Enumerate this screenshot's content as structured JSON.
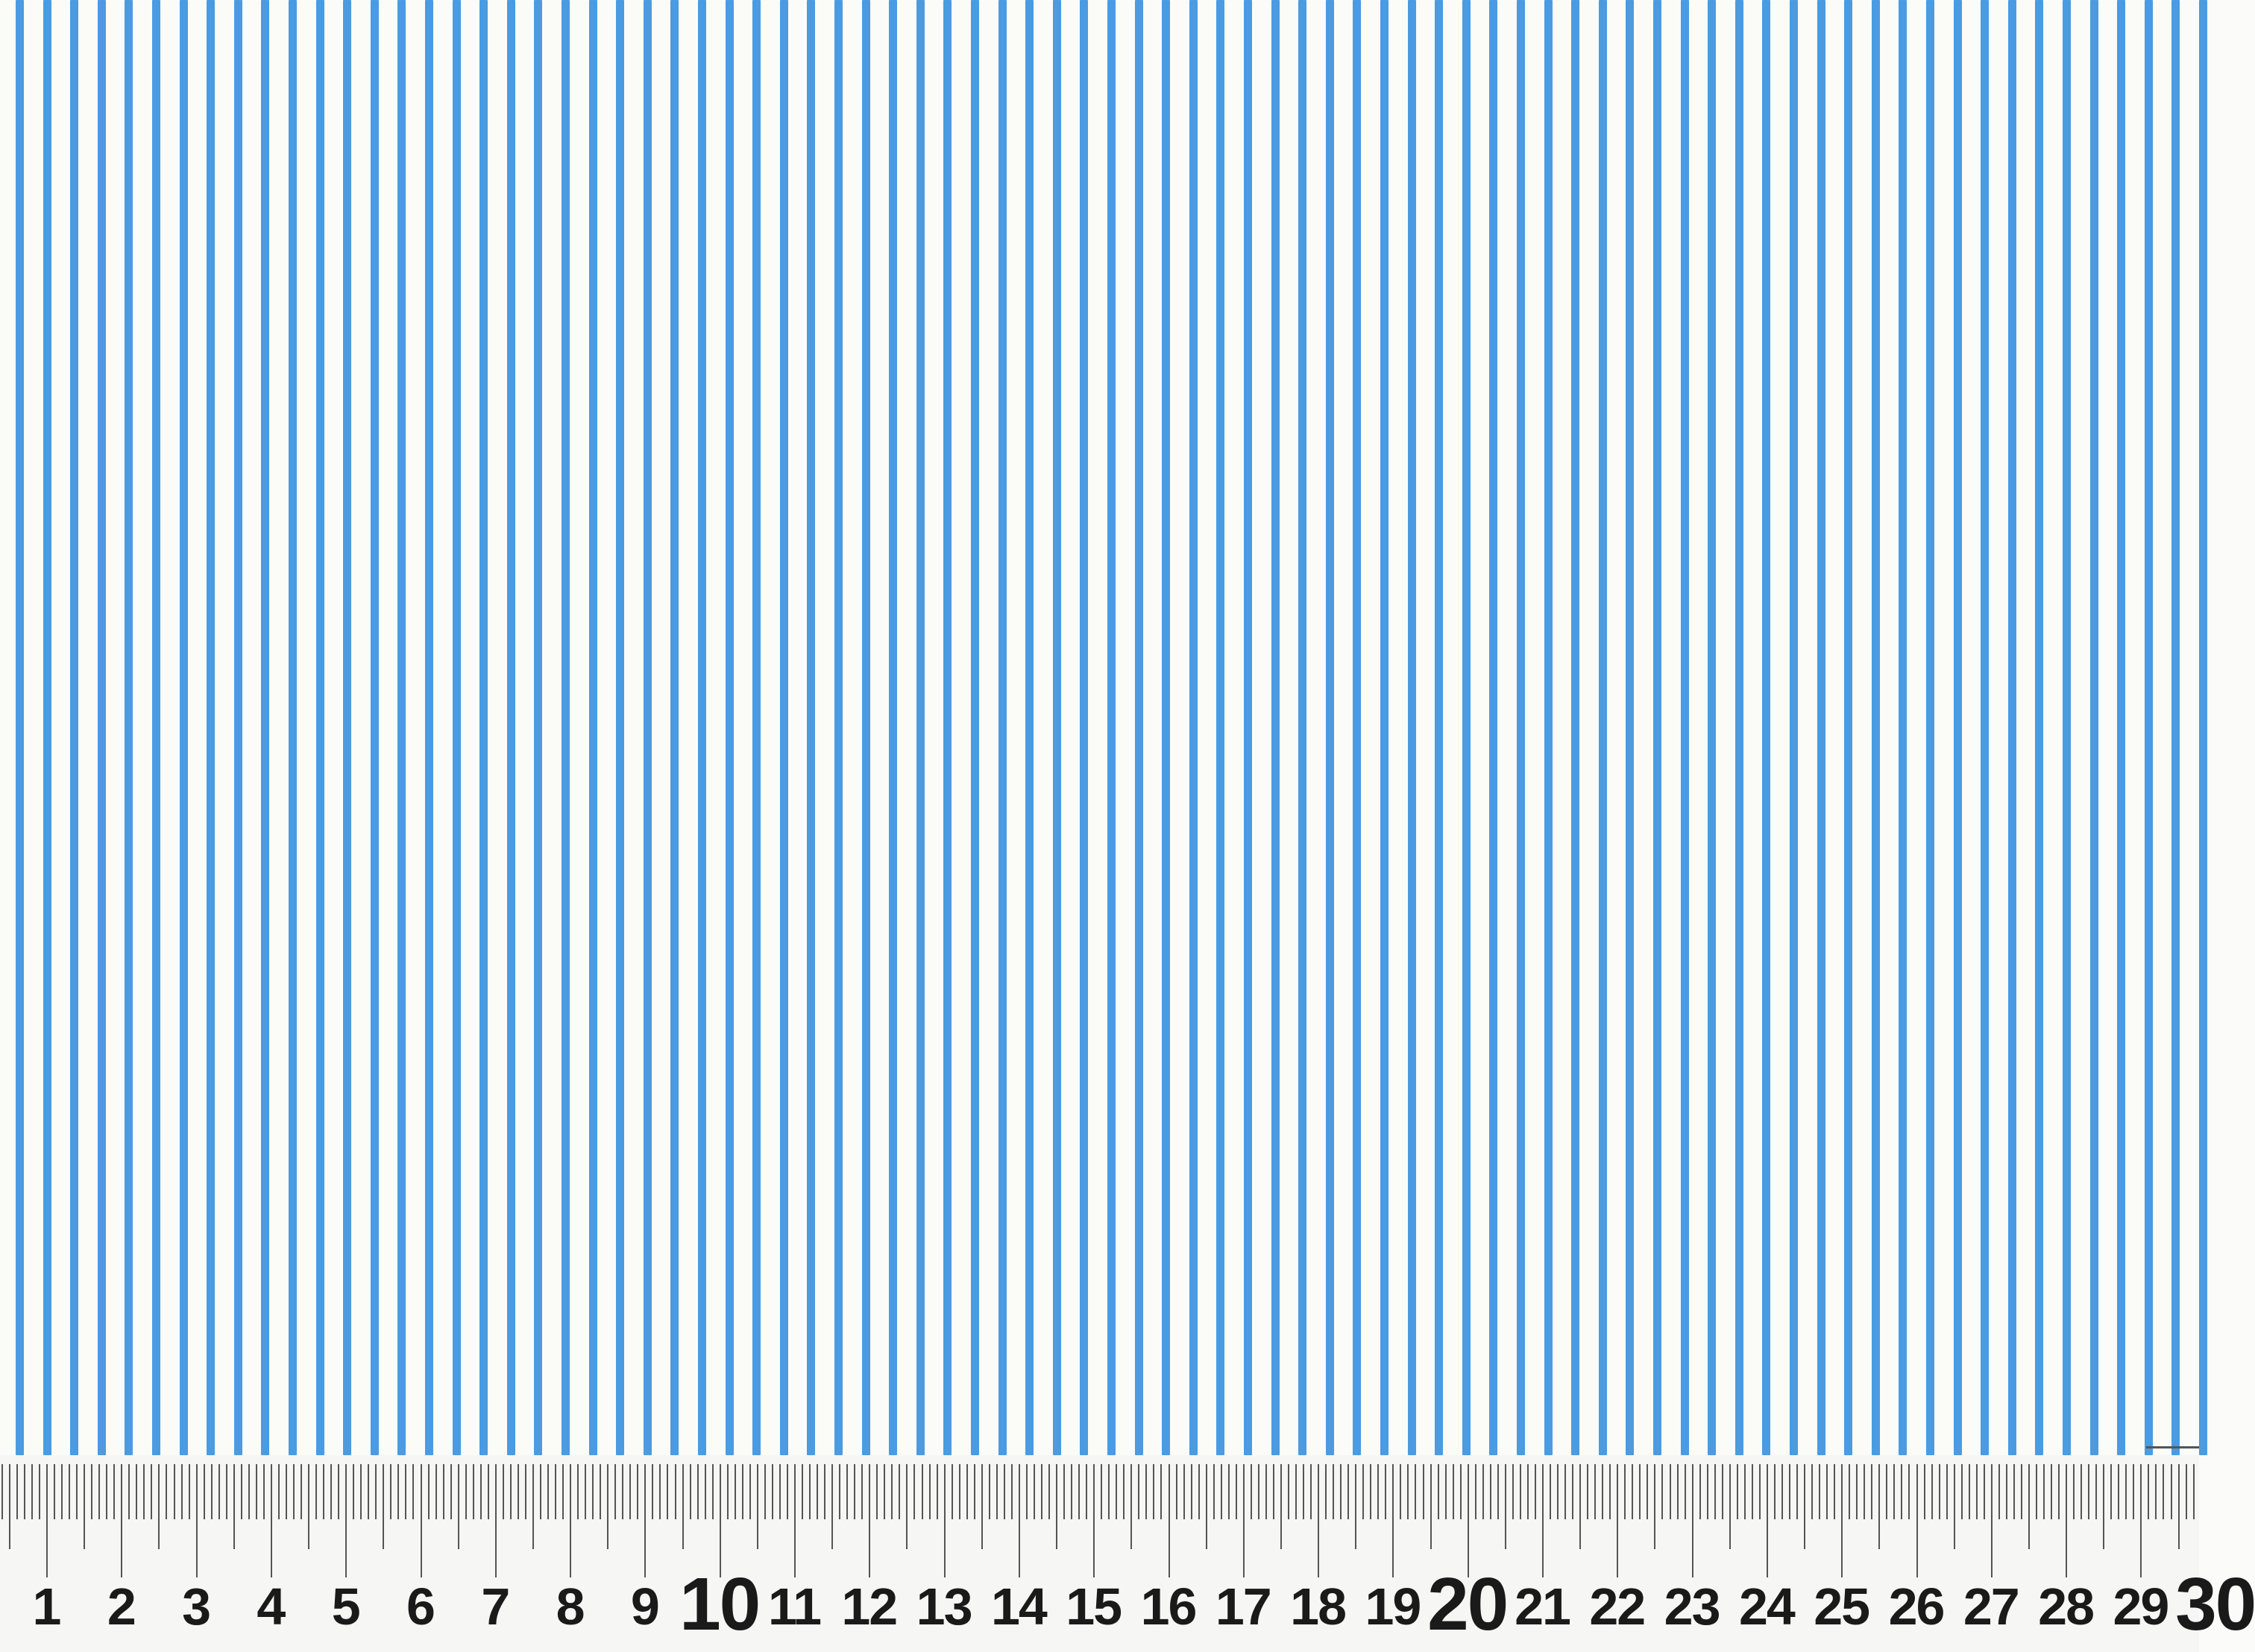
{
  "image": {
    "subject": "blue and white striped fabric",
    "stripe_color": "#4a9be2",
    "background_color": "#fbfbf8"
  },
  "ruler": {
    "labels": [
      "1",
      "2",
      "3",
      "4",
      "5",
      "6",
      "7",
      "8",
      "9",
      "10",
      "11",
      "12",
      "13",
      "14",
      "15",
      "16",
      "17",
      "18",
      "19",
      "20",
      "21",
      "22",
      "23",
      "24",
      "25",
      "26",
      "27",
      "28",
      "29",
      "30"
    ],
    "tick_color": "#555555",
    "label_color": "#1a1a1a"
  }
}
